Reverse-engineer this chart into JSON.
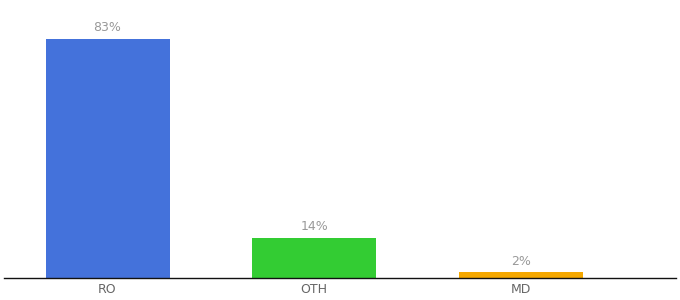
{
  "categories": [
    "RO",
    "OTH",
    "MD"
  ],
  "values": [
    83,
    14,
    2
  ],
  "bar_colors": [
    "#4472db",
    "#33cc33",
    "#f5a800"
  ],
  "labels": [
    "83%",
    "14%",
    "2%"
  ],
  "title_fontsize": 10,
  "label_fontsize": 9,
  "tick_fontsize": 9,
  "ylim": [
    0,
    95
  ],
  "background_color": "#ffffff",
  "label_color": "#999999",
  "tick_color": "#666666",
  "bar_positions": [
    1.0,
    3.0,
    5.0
  ],
  "bar_width": 1.2,
  "xlim": [
    0,
    6.5
  ]
}
